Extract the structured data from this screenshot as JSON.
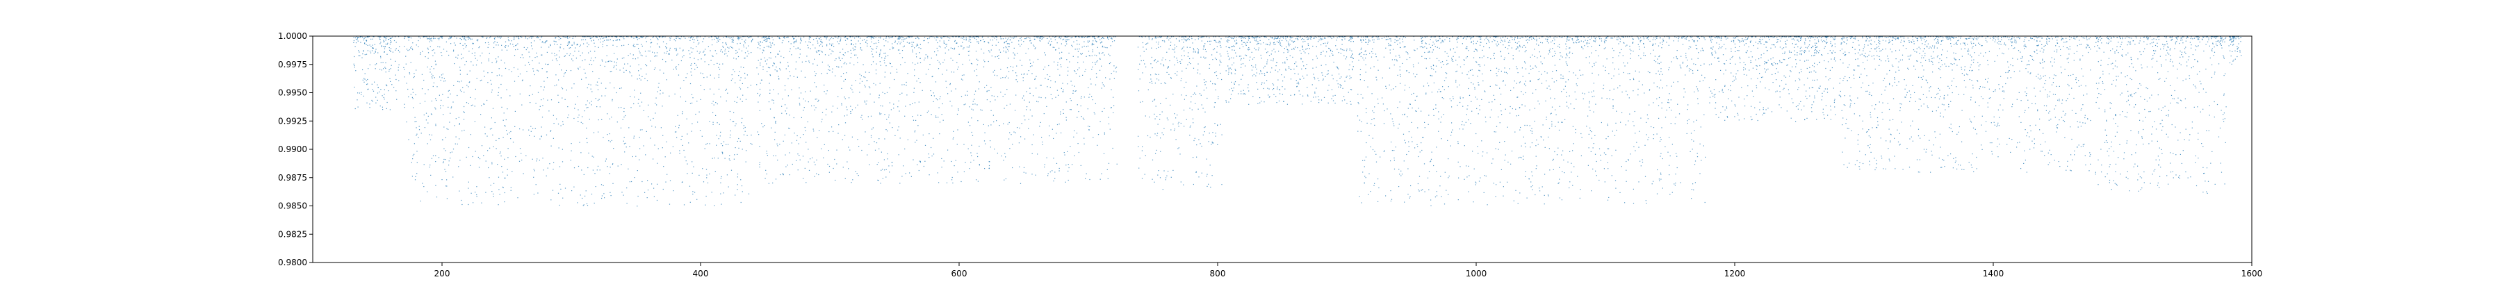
{
  "chart_data": {
    "type": "scatter",
    "title": "",
    "xlabel": "",
    "ylabel": "",
    "xlim": [
      100,
      1600
    ],
    "ylim": [
      0.98,
      1.0
    ],
    "grid": false,
    "legend": "none",
    "x_ticks": [
      200,
      400,
      600,
      800,
      1000,
      1200,
      1400,
      1600
    ],
    "x_tick_labels": [
      "200",
      "400",
      "600",
      "800",
      "1000",
      "1200",
      "1400",
      "1600"
    ],
    "y_ticks": [
      0.98,
      0.9825,
      0.985,
      0.9875,
      0.99,
      0.9925,
      0.995,
      0.9975,
      1.0
    ],
    "y_tick_labels": [
      "0.9800",
      "0.9825",
      "0.9850",
      "0.9875",
      "0.9900",
      "0.9925",
      "0.9950",
      "0.9975",
      "1.0000"
    ],
    "point_color": "#1f77b4",
    "series": [
      {
        "segments": [
          {
            "x_start": 131,
            "x_end": 167,
            "min_y": 0.9935
          },
          {
            "x_start": 170,
            "x_end": 440,
            "min_y": 0.985
          },
          {
            "x_start": 443,
            "x_end": 722,
            "min_y": 0.987
          },
          {
            "x_start": 738,
            "x_end": 803,
            "min_y": 0.9865
          },
          {
            "x_start": 806,
            "x_end": 905,
            "min_y": 0.994
          },
          {
            "x_start": 908,
            "x_end": 1177,
            "min_y": 0.985
          },
          {
            "x_start": 1180,
            "x_end": 1278,
            "min_y": 0.9925
          },
          {
            "x_start": 1280,
            "x_end": 1475,
            "min_y": 0.988
          },
          {
            "x_start": 1478,
            "x_end": 1580,
            "min_y": 0.986
          },
          {
            "x_start": 1582,
            "x_end": 1592,
            "min_y": 0.9975
          }
        ]
      }
    ]
  }
}
